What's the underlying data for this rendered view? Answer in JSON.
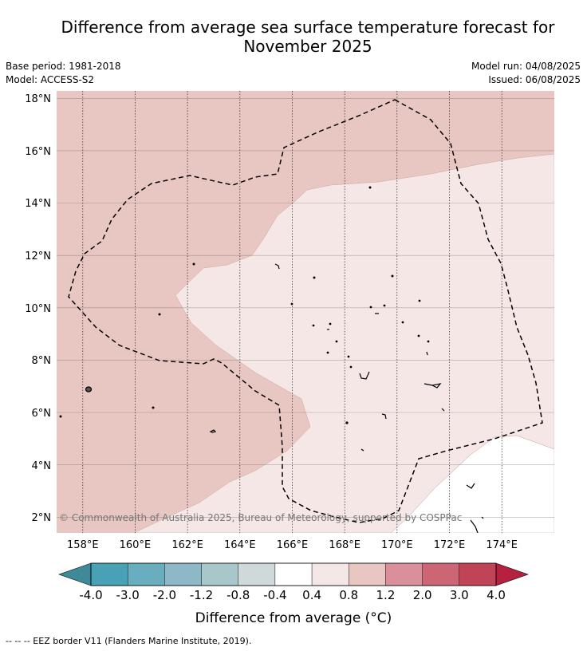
{
  "title_line1": "Difference from average sea surface temperature forecast for",
  "title_line2": "November 2025",
  "meta_left": [
    "Base period: 1981-2018",
    "Model: ACCESS-S2"
  ],
  "meta_right": [
    "Model run: 04/08/2025",
    "Issued: 06/08/2025"
  ],
  "copyright": "© Commonwealth of Australia 2025, Bureau of Meteorology, supported by COSPPac",
  "footer": "-- -- -- EEZ border V11 (Flanders Marine Institute, 2019).",
  "map": {
    "lon_min": 157,
    "lon_max": 176,
    "lat_min": 1.4,
    "lat_max": 18.3,
    "lon_ticks": [
      158,
      160,
      162,
      164,
      166,
      168,
      170,
      172,
      174
    ],
    "lon_tick_labels": [
      "158°E",
      "160°E",
      "162°E",
      "164°E",
      "166°E",
      "168°E",
      "170°E",
      "172°E",
      "174°E"
    ],
    "lat_ticks": [
      2,
      4,
      6,
      8,
      10,
      12,
      14,
      16,
      18
    ],
    "lat_tick_labels": [
      "2°N",
      "4°N",
      "6°N",
      "8°N",
      "10°N",
      "12°N",
      "14°N",
      "16°N",
      "18°N"
    ],
    "anomaly_classes_present": [
      "0.4 to 0.8",
      "0.8 to 1.2"
    ],
    "eez_border_style": "dashed"
  },
  "colorbar": {
    "labels": [
      "-4.0",
      "-3.0",
      "-2.0",
      "-1.2",
      "-0.8",
      "-0.4",
      "0.4",
      "0.8",
      "1.2",
      "2.0",
      "3.0",
      "4.0"
    ],
    "colors": [
      "#3f8a99",
      "#48a1b4",
      "#68aebf",
      "#8cb9c5",
      "#a8c7cb",
      "#cfd9da",
      "#ffffff",
      "#f4e7e6",
      "#e8c6c2",
      "#d9909a",
      "#cd6674",
      "#c04455",
      "#b5213f"
    ],
    "title": "Difference from average (°C)"
  },
  "colors": {
    "warm_light": "#f4e7e6",
    "warm_medium": "#e8c6c2",
    "grid": "#000000"
  }
}
